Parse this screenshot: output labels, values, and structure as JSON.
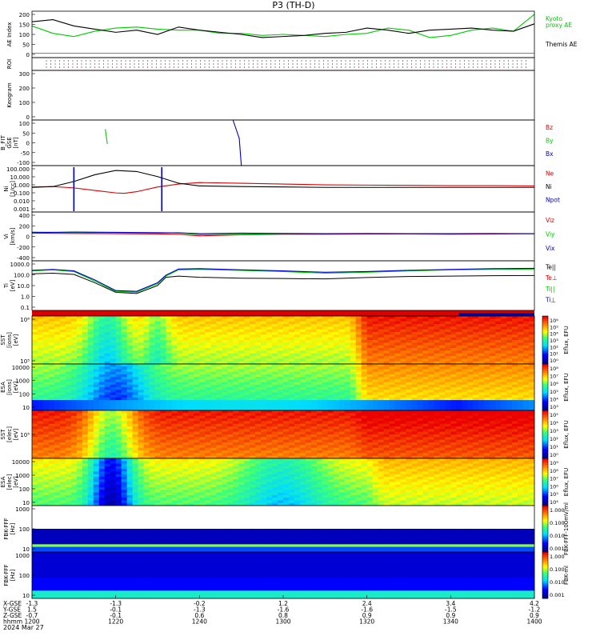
{
  "title": "P3 (TH-D)",
  "chart_data": {
    "type": "line",
    "title": "P3 (TH-D)",
    "date_label": "2024 Mar 27",
    "panels": [
      {
        "id": "ae",
        "kind": "line",
        "ylabel": "AE Index",
        "ylim": [
          -20,
          200
        ],
        "yticks": [
          "200",
          "150",
          "100",
          "50",
          "0"
        ],
        "series": [
          {
            "name": "Kyoto proxy AE",
            "label_lines": [
              "Kyoto",
              "proxy AE"
            ],
            "color": "#00cc00",
            "x": [
              0,
              5,
              10,
              15,
              20,
              25,
              30,
              35,
              40,
              45,
              50,
              55,
              60,
              65,
              70,
              75,
              80,
              85,
              90,
              95,
              100,
              105,
              110,
              115,
              120
            ],
            "y": [
              130,
              95,
              80,
              105,
              120,
              125,
              115,
              110,
              110,
              95,
              95,
              85,
              90,
              85,
              80,
              90,
              95,
              120,
              110,
              75,
              85,
              110,
              120,
              105,
              185
            ]
          },
          {
            "name": "Themis AE",
            "label_lines": [
              "Themis AE"
            ],
            "color": "#000000",
            "x": [
              0,
              5,
              10,
              15,
              20,
              25,
              30,
              35,
              40,
              45,
              50,
              55,
              60,
              65,
              70,
              75,
              80,
              85,
              90,
              95,
              100,
              105,
              110,
              115,
              120
            ],
            "y": [
              150,
              160,
              130,
              115,
              100,
              110,
              90,
              125,
              110,
              100,
              90,
              75,
              80,
              85,
              95,
              100,
              120,
              110,
              95,
              110,
              115,
              120,
              110,
              105,
              140
            ]
          }
        ]
      },
      {
        "id": "roi",
        "kind": "dots",
        "ylabel": "ROI",
        "yticks": []
      },
      {
        "id": "keogram",
        "kind": "empty",
        "ylabel": "Keogram",
        "yticks": [
          "300",
          "200",
          "100",
          "0"
        ]
      },
      {
        "id": "bfit",
        "kind": "line",
        "ylabel": "B_FIT_GSE [nT]",
        "label_lines": [
          "B_FIT",
          "GSE",
          "[nT]"
        ],
        "ylim": [
          -100,
          100
        ],
        "yticks": [
          "100",
          "50",
          "0",
          "-50",
          "-100"
        ],
        "series": [
          {
            "name": "Bz",
            "color": "#dd0000",
            "x": [],
            "y": []
          },
          {
            "name": "By",
            "color": "#00cc00",
            "x": [
              17.5,
              18.0
            ],
            "y": [
              60,
              -5
            ]
          },
          {
            "name": "Bx",
            "color": "#0000cc",
            "x": [
              48,
              49.5,
              50,
              110,
              115,
              120
            ],
            "y": [
              100,
              20,
              -100,
              -100,
              -100,
              -100
            ]
          }
        ]
      },
      {
        "id": "ni",
        "kind": "log",
        "ylabel": "Ni [1/cc]",
        "label_lines": [
          "Ni",
          "[1/cc]"
        ],
        "ylim": [
          0.001,
          300
        ],
        "yticks": [
          "100.000",
          "10.000",
          "1.000",
          "0.100",
          "0.010",
          "0.001"
        ],
        "series": [
          {
            "name": "Ne",
            "color": "#dd0000",
            "x": [
              0,
              5,
              10,
              15,
              20,
              22,
              25,
              30,
              35,
              40,
              50,
              60,
              70,
              80,
              90,
              100,
              110,
              120
            ],
            "y": [
              0.9,
              1.0,
              0.7,
              0.35,
              0.18,
              0.16,
              0.25,
              0.9,
              2.0,
              3.0,
              2.5,
              2.0,
              1.6,
              1.5,
              1.4,
              1.3,
              1.3,
              1.2
            ]
          },
          {
            "name": "Ni",
            "color": "#000000",
            "x": [
              0,
              5,
              10,
              15,
              20,
              25,
              30,
              35,
              40,
              50,
              60,
              70,
              80,
              90,
              100,
              110,
              120
            ],
            "y": [
              0.8,
              1.0,
              4,
              25,
              80,
              60,
              15,
              2.5,
              1.2,
              1.0,
              0.9,
              0.8,
              0.8,
              0.8,
              0.8,
              0.8,
              0.8
            ]
          },
          {
            "name": "Npot",
            "color": "#0000cc",
            "x": [],
            "y": []
          }
        ],
        "spikes": [
          {
            "x": 10,
            "color": "#0000cc"
          },
          {
            "x": 31,
            "color": "#0000cc"
          }
        ]
      },
      {
        "id": "vi",
        "kind": "line",
        "ylabel": "Vi [km/s]",
        "label_lines": [
          "Vi",
          "[km/s]"
        ],
        "ylim": [
          -500,
          400
        ],
        "yticks": [
          "400",
          "200",
          "0",
          "-200",
          "-400"
        ],
        "series": [
          {
            "name": "Viz",
            "color": "#dd0000",
            "x": [
              0,
              10,
              20,
              30,
              35,
              40,
              50,
              60,
              70,
              80,
              90,
              100,
              110,
              120
            ],
            "y": [
              10,
              5,
              0,
              -5,
              -10,
              -40,
              -20,
              -10,
              -10,
              -5,
              -5,
              -10,
              -5,
              0
            ]
          },
          {
            "name": "Viy",
            "color": "#00cc00",
            "x": [
              0,
              10,
              20,
              30,
              35,
              40,
              50,
              60,
              70,
              80,
              90,
              100,
              110,
              120
            ],
            "y": [
              30,
              20,
              10,
              10,
              20,
              -20,
              -10,
              0,
              0,
              5,
              0,
              0,
              5,
              0
            ]
          },
          {
            "name": "Vix",
            "color": "#0000cc",
            "x": [
              0,
              10,
              20,
              30,
              35,
              40,
              50,
              60,
              70,
              80,
              90,
              100,
              110,
              120
            ],
            "y": [
              20,
              30,
              25,
              20,
              15,
              0,
              10,
              5,
              0,
              0,
              0,
              0,
              0,
              0
            ]
          }
        ]
      },
      {
        "id": "ti",
        "kind": "log",
        "ylabel": "Ti [eV]",
        "label_lines": [
          "Ti",
          "[eV]"
        ],
        "ylim": [
          0.05,
          8000
        ],
        "yticks": [
          "1000.0",
          "100.0",
          "10.0",
          "1.0",
          "0.1"
        ],
        "series": [
          {
            "name": "Te||",
            "color": "#000000",
            "x": [],
            "y": []
          },
          {
            "name": "Te⊥",
            "color": "#dd0000",
            "x": [],
            "y": []
          },
          {
            "name": "Ti||",
            "color": "#00cc00",
            "x": [
              0,
              5,
              10,
              15,
              20,
              25,
              30,
              32,
              35,
              40,
              50,
              60,
              70,
              80,
              90,
              100,
              110,
              120
            ],
            "y": [
              700,
              900,
              600,
              60,
              5,
              4,
              30,
              200,
              900,
              1000,
              800,
              600,
              400,
              500,
              700,
              900,
              1000,
              1100
            ]
          },
          {
            "name": "Ti⊥",
            "color": "#0000cc",
            "x": [
              0,
              5,
              10,
              15,
              20,
              25,
              30,
              32,
              35,
              40,
              50,
              60,
              70,
              80,
              90,
              100,
              110,
              120
            ],
            "y": [
              800,
              1000,
              700,
              80,
              6,
              5,
              40,
              250,
              1100,
              1200,
              900,
              700,
              500,
              600,
              800,
              1000,
              1200,
              1300
            ]
          }
        ],
        "black_line": {
          "x": [
            0,
            5,
            10,
            15,
            20,
            25,
            30,
            32,
            35,
            40,
            50,
            60,
            70,
            80,
            90,
            100,
            110,
            120
          ],
          "y": [
            350,
            400,
            300,
            40,
            4,
            3,
            20,
            150,
            200,
            150,
            120,
            110,
            100,
            140,
            180,
            200,
            220,
            230
          ]
        }
      },
      {
        "id": "sst_i",
        "kind": "spectrogram",
        "ylabel": "SST [ions] [eV]",
        "label_lines": [
          "SST",
          "[ions]",
          "[eV]"
        ],
        "yticks": [
          "10⁶",
          "10⁵"
        ],
        "cbar_label": "Eflux, EFU",
        "cbar_ticks": [
          "10⁶",
          "10⁵",
          "10⁴",
          "10³",
          "10²",
          "10¹",
          "10⁰"
        ],
        "base": 0.68,
        "dips": [
          {
            "x": 18,
            "w": 5,
            "d": 0.25
          },
          {
            "x": 30,
            "w": 3,
            "d": 0.15
          }
        ],
        "ramp": {
          "x": 76,
          "to": 0.9
        }
      },
      {
        "id": "esa_i",
        "kind": "spectrogram",
        "ylabel": "ESA [ions] [eV]",
        "label_lines": [
          "ESA",
          "[ions]",
          "[eV]"
        ],
        "yticks": [
          "10000",
          "1000",
          "100",
          "10"
        ],
        "cbar_label": "Eflux, EFU",
        "cbar_ticks": [
          "10⁸",
          "10⁷",
          "10⁶",
          "10⁵",
          "10⁴",
          "10³"
        ],
        "base": 0.55,
        "dips": [
          {
            "x": 20,
            "w": 8,
            "d": 0.3
          }
        ],
        "ramp": {
          "x": 76,
          "to": 0.75
        }
      },
      {
        "id": "sst_e",
        "kind": "spectrogram",
        "ylabel": "SST [elec] [eV]",
        "label_lines": [
          "SST",
          "[elec]",
          "[eV]"
        ],
        "yticks": [
          "10⁵"
        ],
        "cbar_label": "Eflux, EFU",
        "cbar_ticks": [
          "10⁵",
          "10⁴",
          "10³",
          "10²",
          "10¹",
          "10⁰"
        ],
        "base": 0.9,
        "dips": [
          {
            "x": 19,
            "w": 6,
            "d": 0.35
          }
        ],
        "ramp": {
          "x": 76,
          "to": 0.95
        }
      },
      {
        "id": "esa_e",
        "kind": "spectrogram",
        "ylabel": "ESA [elec] [eV]",
        "label_lines": [
          "ESA",
          "[elec]",
          "[eV]"
        ],
        "yticks": [
          "10000",
          "1000",
          "100",
          "10"
        ],
        "cbar_label": "Eflux, EFU",
        "cbar_ticks": [
          "10⁹",
          "10⁸",
          "10⁷",
          "10⁶",
          "10⁵",
          "10⁴"
        ],
        "base": 0.62,
        "dips": [
          {
            "x": 19,
            "w": 5,
            "d": 0.5
          },
          {
            "x": 60,
            "w": 10,
            "d": 0.2
          }
        ],
        "ramp": {
          "x": 80,
          "to": 0.7
        }
      },
      {
        "id": "fbk1",
        "kind": "spectrogram",
        "ylabel": "FBK-FFF [Hz]",
        "label_lines": [
          "FBK-FFF",
          "[Hz]"
        ],
        "yticks": [
          "1000",
          "100",
          "10"
        ],
        "cbar_label": "FBK-FFF-100mV/ml",
        "cbar_ticks": [
          "1.000",
          "0.100",
          "0.010",
          "0.001"
        ],
        "base": 0.0,
        "dips": [],
        "ramp": null
      },
      {
        "id": "fbk2",
        "kind": "spectrogram",
        "ylabel": "FBK-FFF [Hz]",
        "label_lines": [
          "FBK-FFF",
          "[Hz]"
        ],
        "yticks": [
          "1000",
          "100",
          "10"
        ],
        "cbar_label": "FBK-ml",
        "cbar_ticks": [
          "1.000",
          "0.100",
          "0.010",
          "0.001"
        ],
        "base": 0.25,
        "dips": [],
        "ramp": null
      }
    ],
    "x_axis": {
      "row_labels": [
        "X-GSE",
        "Y-GSE",
        "Z-GSE",
        "hhmm"
      ],
      "columns": [
        {
          "x": 0,
          "values": [
            "-1.3",
            "1.5",
            "-0.7",
            "1200"
          ]
        },
        {
          "x": 20,
          "values": [
            "-1.3",
            "-0.1",
            "-0.1",
            "1220"
          ]
        },
        {
          "x": 40,
          "values": [
            "-0.2",
            "-1.3",
            "0.6",
            "1240"
          ]
        },
        {
          "x": 60,
          "values": [
            "1.2",
            "-1.6",
            "0.8",
            "1300"
          ]
        },
        {
          "x": 80,
          "values": [
            "2.4",
            "-1.6",
            "0.9",
            "1320"
          ]
        },
        {
          "x": 100,
          "values": [
            "3.4",
            "-1.5",
            "0.9",
            "1340"
          ]
        },
        {
          "x": 120,
          "values": [
            "4.2",
            "-1.2",
            "0.9",
            "1400"
          ]
        }
      ]
    }
  }
}
